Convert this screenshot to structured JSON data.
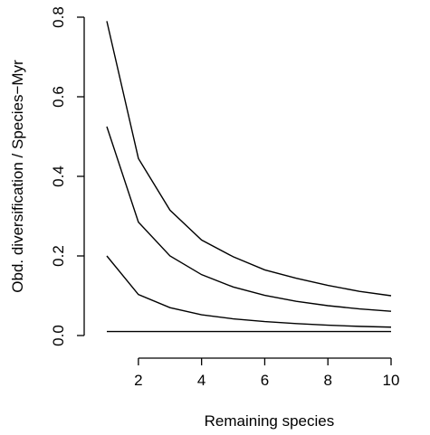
{
  "chart_data": {
    "type": "line",
    "title": "",
    "xlabel": "Remaining species",
    "ylabel": "Obd. diversification / Species−Myr",
    "xlim": [
      1,
      10
    ],
    "ylim": [
      0,
      0.8
    ],
    "xticks": [
      2,
      4,
      6,
      8,
      10
    ],
    "yticks": [
      0.0,
      0.2,
      0.4,
      0.6,
      0.8
    ],
    "xtick_labels": [
      "2",
      "4",
      "6",
      "8",
      "10"
    ],
    "ytick_labels": [
      "0.0",
      "0.2",
      "0.4",
      "0.6",
      "0.8"
    ],
    "grid": false,
    "legend": "none",
    "line_color": "#000000",
    "x": [
      1,
      2,
      3,
      4,
      5,
      6,
      7,
      8,
      9,
      10
    ],
    "series": [
      {
        "values": [
          0.79,
          0.445,
          0.315,
          0.24,
          0.198,
          0.165,
          0.144,
          0.126,
          0.111,
          0.1
        ]
      },
      {
        "values": [
          0.525,
          0.285,
          0.2,
          0.153,
          0.122,
          0.101,
          0.086,
          0.075,
          0.067,
          0.061
        ]
      },
      {
        "values": [
          0.2,
          0.103,
          0.07,
          0.052,
          0.042,
          0.035,
          0.03,
          0.026,
          0.023,
          0.021
        ]
      },
      {
        "values": [
          0.01,
          0.01,
          0.01,
          0.01,
          0.01,
          0.01,
          0.01,
          0.01,
          0.01,
          0.01
        ]
      }
    ]
  }
}
